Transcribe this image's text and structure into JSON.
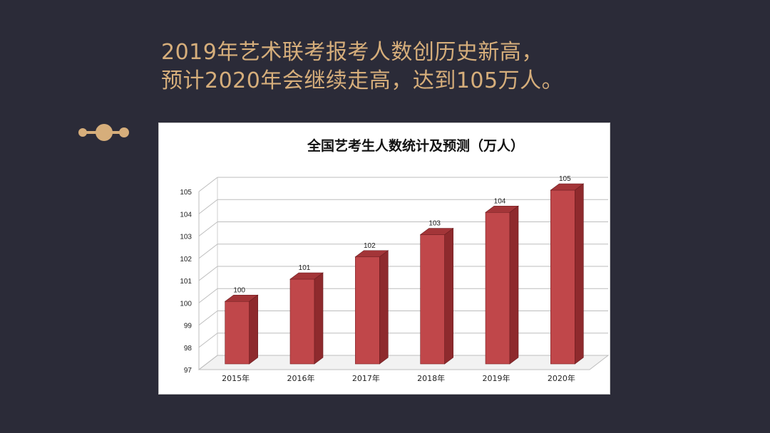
{
  "headline": {
    "line1": "2019年艺术联考报考人数创历史新高，",
    "line2": "预计2020年会继续走高，达到105万人。"
  },
  "colors": {
    "background": "#2b2b38",
    "accent": "#d6ae7b",
    "bar_front": "#c0474a",
    "bar_side": "#8e2a2d",
    "bar_top": "#a33538"
  },
  "decoration": "dots-connector",
  "chart_data": {
    "type": "bar",
    "title": "全国艺考生人数统计及预测（万人）",
    "categories": [
      "2015年",
      "2016年",
      "2017年",
      "2018年",
      "2019年",
      "2020年"
    ],
    "values": [
      100,
      101,
      102,
      103,
      104,
      105
    ],
    "data_labels": [
      "100",
      "101",
      "102",
      "103",
      "104",
      "105"
    ],
    "y_ticks": [
      "97",
      "98",
      "99",
      "100",
      "101",
      "102",
      "103",
      "104",
      "105"
    ],
    "ylim": [
      97,
      105
    ],
    "xlabel": "",
    "ylabel": "",
    "grid": true,
    "legend": false,
    "style": "3d"
  }
}
